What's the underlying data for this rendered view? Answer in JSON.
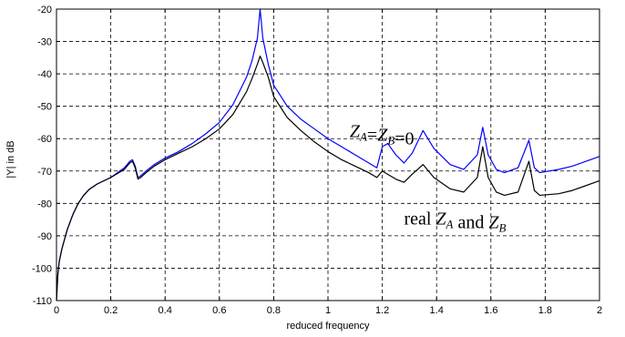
{
  "chart_data": {
    "type": "line",
    "title": "",
    "xlabel": "reduced frequency",
    "ylabel": "|Y| in dB",
    "xlim": [
      0,
      2
    ],
    "ylim": [
      -110,
      -20
    ],
    "grid": true,
    "x_ticks": [
      "0",
      "0.2",
      "0.4",
      "0.6",
      "0.8",
      "1",
      "1.2",
      "1.4",
      "1.6",
      "1.8",
      "2"
    ],
    "y_ticks": [
      "-20",
      "-30",
      "-40",
      "-50",
      "-60",
      "-70",
      "-80",
      "-90",
      "-100",
      "-110"
    ],
    "series": [
      {
        "color": "#0000ff",
        "points": [
          [
            0.0,
            -110
          ],
          [
            0.005,
            -102
          ],
          [
            0.01,
            -98
          ],
          [
            0.02,
            -94
          ],
          [
            0.04,
            -88
          ],
          [
            0.06,
            -83.5
          ],
          [
            0.08,
            -80
          ],
          [
            0.1,
            -77.5
          ],
          [
            0.12,
            -75.7
          ],
          [
            0.15,
            -74
          ],
          [
            0.2,
            -72
          ],
          [
            0.25,
            -69
          ],
          [
            0.27,
            -67
          ],
          [
            0.28,
            -66.5
          ],
          [
            0.29,
            -68.5
          ],
          [
            0.3,
            -72
          ],
          [
            0.31,
            -71.5
          ],
          [
            0.33,
            -70
          ],
          [
            0.36,
            -68
          ],
          [
            0.4,
            -66
          ],
          [
            0.45,
            -64
          ],
          [
            0.5,
            -61.5
          ],
          [
            0.55,
            -58.5
          ],
          [
            0.6,
            -55
          ],
          [
            0.65,
            -49.5
          ],
          [
            0.7,
            -41
          ],
          [
            0.72,
            -36
          ],
          [
            0.74,
            -29
          ],
          [
            0.75,
            -20
          ],
          [
            0.76,
            -29
          ],
          [
            0.78,
            -37
          ],
          [
            0.8,
            -43.5
          ],
          [
            0.85,
            -50
          ],
          [
            0.9,
            -54
          ],
          [
            0.95,
            -57
          ],
          [
            1.0,
            -60
          ],
          [
            1.05,
            -62.5
          ],
          [
            1.1,
            -65
          ],
          [
            1.15,
            -67.5
          ],
          [
            1.18,
            -69
          ],
          [
            1.2,
            -62.5
          ],
          [
            1.22,
            -61.5
          ],
          [
            1.25,
            -65
          ],
          [
            1.28,
            -67.5
          ],
          [
            1.31,
            -64.5
          ],
          [
            1.35,
            -57.5
          ],
          [
            1.39,
            -63
          ],
          [
            1.45,
            -68
          ],
          [
            1.5,
            -69.5
          ],
          [
            1.55,
            -65
          ],
          [
            1.57,
            -56.5
          ],
          [
            1.59,
            -65
          ],
          [
            1.62,
            -69.5
          ],
          [
            1.65,
            -70.5
          ],
          [
            1.7,
            -69
          ],
          [
            1.74,
            -60.5
          ],
          [
            1.76,
            -69
          ],
          [
            1.78,
            -70.5
          ],
          [
            1.85,
            -69.5
          ],
          [
            1.9,
            -68.5
          ],
          [
            2.0,
            -65.5
          ]
        ]
      },
      {
        "color": "#000000",
        "points": [
          [
            0.0,
            -110
          ],
          [
            0.005,
            -102
          ],
          [
            0.01,
            -98
          ],
          [
            0.02,
            -94
          ],
          [
            0.04,
            -88
          ],
          [
            0.06,
            -83.5
          ],
          [
            0.08,
            -80
          ],
          [
            0.1,
            -77.5
          ],
          [
            0.12,
            -75.7
          ],
          [
            0.15,
            -74
          ],
          [
            0.2,
            -72
          ],
          [
            0.25,
            -69.5
          ],
          [
            0.27,
            -67.5
          ],
          [
            0.28,
            -67
          ],
          [
            0.29,
            -69
          ],
          [
            0.3,
            -72.5
          ],
          [
            0.31,
            -72
          ],
          [
            0.33,
            -70.5
          ],
          [
            0.36,
            -68.5
          ],
          [
            0.4,
            -66.5
          ],
          [
            0.45,
            -64.5
          ],
          [
            0.5,
            -62.5
          ],
          [
            0.55,
            -60
          ],
          [
            0.6,
            -57
          ],
          [
            0.65,
            -52.5
          ],
          [
            0.7,
            -45.5
          ],
          [
            0.72,
            -41.5
          ],
          [
            0.74,
            -37
          ],
          [
            0.75,
            -34.5
          ],
          [
            0.76,
            -36.5
          ],
          [
            0.78,
            -41
          ],
          [
            0.8,
            -47
          ],
          [
            0.85,
            -53.5
          ],
          [
            0.9,
            -57.5
          ],
          [
            0.95,
            -61
          ],
          [
            1.0,
            -64
          ],
          [
            1.05,
            -66.5
          ],
          [
            1.1,
            -68.5
          ],
          [
            1.15,
            -70.5
          ],
          [
            1.18,
            -72
          ],
          [
            1.2,
            -70
          ],
          [
            1.22,
            -71
          ],
          [
            1.25,
            -72.5
          ],
          [
            1.28,
            -73.5
          ],
          [
            1.31,
            -71
          ],
          [
            1.35,
            -68
          ],
          [
            1.39,
            -72
          ],
          [
            1.45,
            -75.5
          ],
          [
            1.5,
            -76.5
          ],
          [
            1.55,
            -72
          ],
          [
            1.57,
            -62.5
          ],
          [
            1.59,
            -72
          ],
          [
            1.62,
            -76.5
          ],
          [
            1.65,
            -77.5
          ],
          [
            1.7,
            -76.5
          ],
          [
            1.74,
            -67
          ],
          [
            1.76,
            -76
          ],
          [
            1.78,
            -77.5
          ],
          [
            1.85,
            -77
          ],
          [
            1.9,
            -76
          ],
          [
            2.0,
            -73
          ]
        ]
      }
    ],
    "annotations": [
      {
        "name": "annotation-zero-impedance",
        "x": 1.08,
        "y": -59.5,
        "parts": [
          {
            "t": "Z",
            "style": "italic"
          },
          {
            "t": "A",
            "style": "italic-sub"
          },
          {
            "t": "=",
            "style": "normal"
          },
          {
            "t": "Z",
            "style": "italic"
          },
          {
            "t": "B",
            "style": "italic-sub"
          },
          {
            "t": "=0",
            "style": "normal"
          }
        ]
      },
      {
        "name": "annotation-real-impedance",
        "x": 1.28,
        "y": -86.5,
        "parts": [
          {
            "t": "real ",
            "style": "normal"
          },
          {
            "t": "Z",
            "style": "italic"
          },
          {
            "t": "A",
            "style": "italic-sub"
          },
          {
            "t": " and ",
            "style": "normal"
          },
          {
            "t": "Z",
            "style": "italic"
          },
          {
            "t": "B",
            "style": "italic-sub"
          }
        ]
      }
    ]
  }
}
